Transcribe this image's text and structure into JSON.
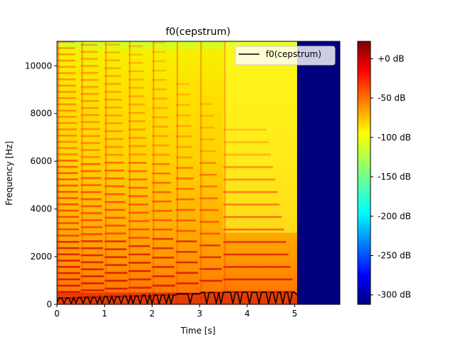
{
  "chart_data": {
    "type": "heatmap",
    "title": "f0(cepstrum)",
    "xlabel": "Time [s]",
    "ylabel": "Frequency [Hz]",
    "xlim": [
      0,
      5.95
    ],
    "ylim": [
      0,
      11025
    ],
    "x_ticks": [
      0,
      1,
      2,
      3,
      4,
      5
    ],
    "x_tick_labels": [
      "0",
      "1",
      "2",
      "3",
      "4",
      "5"
    ],
    "y_ticks": [
      0,
      2000,
      4000,
      6000,
      8000,
      10000
    ],
    "y_tick_labels": [
      "0",
      "2000",
      "4000",
      "6000",
      "8000",
      "10000"
    ],
    "colormap": "jet",
    "colorbar": {
      "range_db": [
        -312,
        22
      ],
      "ticks": [
        0,
        -50,
        -100,
        -150,
        -200,
        -250,
        -300
      ],
      "tick_labels": [
        "+0 dB",
        "-50 dB",
        "-100 dB",
        "-150 dB",
        "-200 dB",
        "-250 dB",
        "-300 dB"
      ]
    },
    "signal_end_time": 5.05,
    "note_onsets": [
      0,
      0.5,
      1.0,
      1.5,
      2.0,
      2.5,
      3.0,
      3.5
    ],
    "harmonic_fundamentals_hz": [
      262,
      294,
      330,
      349,
      392,
      440,
      494,
      523
    ],
    "legend": {
      "placement": "top-right",
      "entries": [
        "f0(cepstrum)"
      ]
    },
    "series": [
      {
        "name": "f0(cepstrum)",
        "color": "#000000",
        "x": [
          0.0,
          0.05,
          0.1,
          0.15,
          0.2,
          0.25,
          0.3,
          0.35,
          0.4,
          0.45,
          0.5,
          0.55,
          0.6,
          0.65,
          0.7,
          0.75,
          0.8,
          0.85,
          0.9,
          0.95,
          1.0,
          1.05,
          1.1,
          1.15,
          1.2,
          1.25,
          1.3,
          1.35,
          1.4,
          1.45,
          1.5,
          1.55,
          1.6,
          1.65,
          1.7,
          1.75,
          1.8,
          1.85,
          1.9,
          1.95,
          2.0,
          2.05,
          2.1,
          2.15,
          2.2,
          2.25,
          2.3,
          2.35,
          2.4,
          2.45,
          2.5,
          2.55,
          2.6,
          2.65,
          2.7,
          2.75,
          2.8,
          2.85,
          2.9,
          2.95,
          3.0,
          3.05,
          3.1,
          3.15,
          3.2,
          3.25,
          3.3,
          3.35,
          3.4,
          3.45,
          3.5,
          3.55,
          3.6,
          3.65,
          3.7,
          3.75,
          3.8,
          3.85,
          3.9,
          3.95,
          4.0,
          4.05,
          4.1,
          4.15,
          4.2,
          4.25,
          4.3,
          4.35,
          4.4,
          4.45,
          4.5,
          4.55,
          4.6,
          4.65,
          4.7,
          4.75,
          4.8,
          4.85,
          4.9,
          4.95,
          5.0,
          5.05
        ],
        "y": [
          100,
          270,
          270,
          40,
          270,
          270,
          30,
          290,
          60,
          290,
          290,
          40,
          300,
          300,
          30,
          300,
          300,
          30,
          330,
          20,
          330,
          330,
          40,
          330,
          60,
          330,
          330,
          20,
          350,
          350,
          50,
          350,
          30,
          350,
          350,
          20,
          390,
          390,
          30,
          390,
          30,
          390,
          390,
          20,
          390,
          390,
          40,
          400,
          30,
          400,
          400,
          440,
          440,
          440,
          440,
          440,
          30,
          440,
          440,
          440,
          440,
          500,
          500,
          20,
          500,
          500,
          500,
          30,
          500,
          20,
          500,
          500,
          500,
          500,
          30,
          500,
          500,
          20,
          500,
          500,
          500,
          20,
          500,
          500,
          500,
          30,
          500,
          500,
          500,
          20,
          500,
          500,
          30,
          500,
          500,
          20,
          500,
          500,
          20,
          500,
          500,
          400
        ]
      }
    ]
  }
}
